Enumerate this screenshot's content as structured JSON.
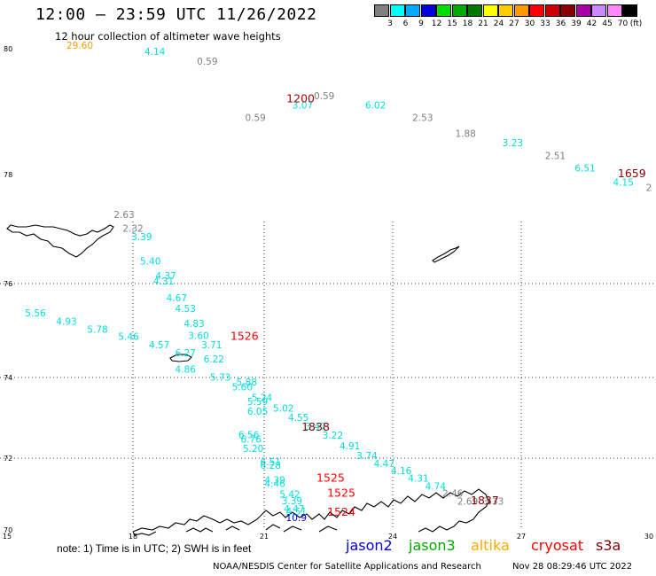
{
  "header": {
    "title": "12:00 — 23:59 UTC 11/26/2022",
    "subtitle": "12 hour collection of altimeter wave heights"
  },
  "color_scale": {
    "unit": "(ft)",
    "entries": [
      {
        "label": "3",
        "color": "#808080"
      },
      {
        "label": "6",
        "color": "#00ffff"
      },
      {
        "label": "9",
        "color": "#00aaff"
      },
      {
        "label": "12",
        "color": "#0000dd"
      },
      {
        "label": "15",
        "color": "#00dd00"
      },
      {
        "label": "18",
        "color": "#00aa00"
      },
      {
        "label": "21",
        "color": "#007700"
      },
      {
        "label": "24",
        "color": "#ffff00"
      },
      {
        "label": "27",
        "color": "#ffcc00"
      },
      {
        "label": "30",
        "color": "#ff9900"
      },
      {
        "label": "33",
        "color": "#ff0000"
      },
      {
        "label": "36",
        "color": "#cc0000"
      },
      {
        "label": "39",
        "color": "#880000"
      },
      {
        "label": "42",
        "color": "#aa00aa"
      },
      {
        "label": "45",
        "color": "#cc88ff"
      },
      {
        "label": "70",
        "color": "#ff88ff"
      },
      {
        "label": "",
        "color": "#000000"
      }
    ]
  },
  "axes": {
    "lat_labels": [
      {
        "text": "80",
        "lat": 80
      },
      {
        "text": "78",
        "lat": 78
      },
      {
        "text": "76",
        "lat": 76
      },
      {
        "text": "74",
        "lat": 74
      },
      {
        "text": "72",
        "lat": 72
      },
      {
        "text": "70",
        "lat": 70
      }
    ],
    "lon_labels": [
      {
        "text": "15",
        "lon": 15
      },
      {
        "text": "18",
        "lon": 18
      },
      {
        "text": "21",
        "lon": 21
      },
      {
        "text": "24",
        "lon": 24
      },
      {
        "text": "27",
        "lon": 27
      },
      {
        "text": "30",
        "lon": 30
      }
    ]
  },
  "observations": [
    {
      "v": "29.60",
      "lat": 80.0,
      "lon": 16.8,
      "c": "#ff9900"
    },
    {
      "v": "4.14",
      "lat": 79.9,
      "lon": 18.5,
      "c": "#00dddd"
    },
    {
      "v": "0.59",
      "lat": 79.75,
      "lon": 19.7,
      "c": "#808080"
    },
    {
      "v": "0.59",
      "lat": 79.2,
      "lon": 22.4,
      "c": "#808080"
    },
    {
      "v": "3.07",
      "lat": 79.05,
      "lon": 21.9,
      "c": "#00dddd"
    },
    {
      "v": "6.02",
      "lat": 79.05,
      "lon": 23.6,
      "c": "#00dddd"
    },
    {
      "v": "2.53",
      "lat": 78.85,
      "lon": 24.7,
      "c": "#808080"
    },
    {
      "v": "1.88",
      "lat": 78.6,
      "lon": 25.7,
      "c": "#808080"
    },
    {
      "v": "3.23",
      "lat": 78.45,
      "lon": 26.8,
      "c": "#00dddd"
    },
    {
      "v": "2.51",
      "lat": 78.25,
      "lon": 27.8,
      "c": "#808080"
    },
    {
      "v": "6.51",
      "lat": 78.05,
      "lon": 28.5,
      "c": "#00dddd"
    },
    {
      "v": "4.15",
      "lat": 77.8,
      "lon": 29.4,
      "c": "#00dddd"
    },
    {
      "v": "0.59",
      "lat": 78.85,
      "lon": 20.8,
      "c": "#808080"
    },
    {
      "v": "2",
      "lat": 77.7,
      "lon": 30.0,
      "c": "#808080"
    },
    {
      "v": "2.63",
      "lat": 77.2,
      "lon": 17.8,
      "c": "#808080"
    },
    {
      "v": "2.32",
      "lat": 76.95,
      "lon": 18.0,
      "c": "#808080"
    },
    {
      "v": "3.39",
      "lat": 76.8,
      "lon": 18.2,
      "c": "#00dddd"
    },
    {
      "v": "5.40",
      "lat": 76.35,
      "lon": 18.4,
      "c": "#00dddd"
    },
    {
      "v": "4.37",
      "lat": 76.08,
      "lon": 18.75,
      "c": "#00dddd"
    },
    {
      "v": "4.31",
      "lat": 75.98,
      "lon": 18.7,
      "c": "#00dddd"
    },
    {
      "v": "4.67",
      "lat": 75.62,
      "lon": 19.0,
      "c": "#00dddd"
    },
    {
      "v": "4.53",
      "lat": 75.4,
      "lon": 19.2,
      "c": "#00dddd"
    },
    {
      "v": "4.83",
      "lat": 75.08,
      "lon": 19.4,
      "c": "#00dddd"
    },
    {
      "v": "3.60",
      "lat": 74.82,
      "lon": 19.5,
      "c": "#00dddd"
    },
    {
      "v": "3.71",
      "lat": 74.62,
      "lon": 19.8,
      "c": "#00dddd"
    },
    {
      "v": "6.22",
      "lat": 74.32,
      "lon": 19.85,
      "c": "#00dddd"
    },
    {
      "v": "4.86",
      "lat": 74.1,
      "lon": 19.2,
      "c": "#00dddd"
    },
    {
      "v": "5.73",
      "lat": 73.92,
      "lon": 20.0,
      "c": "#00dddd"
    },
    {
      "v": "5.88",
      "lat": 73.8,
      "lon": 20.6,
      "c": "#00dddd"
    },
    {
      "v": "5.60",
      "lat": 73.68,
      "lon": 20.5,
      "c": "#00dddd"
    },
    {
      "v": "5.24",
      "lat": 73.42,
      "lon": 20.95,
      "c": "#00dddd"
    },
    {
      "v": "5.59",
      "lat": 73.32,
      "lon": 20.85,
      "c": "#00dddd"
    },
    {
      "v": "6.05",
      "lat": 73.08,
      "lon": 20.85,
      "c": "#00dddd"
    },
    {
      "v": "5.02",
      "lat": 73.15,
      "lon": 21.45,
      "c": "#00dddd"
    },
    {
      "v": "4.55",
      "lat": 72.92,
      "lon": 21.8,
      "c": "#00dddd"
    },
    {
      "v": "3.47",
      "lat": 72.7,
      "lon": 22.2,
      "c": "#00dddd"
    },
    {
      "v": "3.22",
      "lat": 72.48,
      "lon": 22.6,
      "c": "#00dddd"
    },
    {
      "v": "4.91",
      "lat": 72.22,
      "lon": 23.0,
      "c": "#00dddd"
    },
    {
      "v": "3.74",
      "lat": 71.98,
      "lon": 23.4,
      "c": "#00dddd"
    },
    {
      "v": "4.47",
      "lat": 71.75,
      "lon": 23.8,
      "c": "#00dddd"
    },
    {
      "v": "4.16",
      "lat": 71.55,
      "lon": 24.2,
      "c": "#00dddd"
    },
    {
      "v": "4.31",
      "lat": 71.34,
      "lon": 24.6,
      "c": "#00dddd"
    },
    {
      "v": "4.74",
      "lat": 71.12,
      "lon": 25.0,
      "c": "#00dddd"
    },
    {
      "v": "2.46",
      "lat": 70.92,
      "lon": 25.4,
      "c": "#808080"
    },
    {
      "v": "2.69",
      "lat": 70.7,
      "lon": 25.75,
      "c": "#808080"
    },
    {
      "v": "3.33",
      "lat": 70.7,
      "lon": 26.35,
      "c": "#808080"
    },
    {
      "v": "6.56",
      "lat": 72.5,
      "lon": 20.65,
      "c": "#00dddd"
    },
    {
      "v": "6.76",
      "lat": 72.38,
      "lon": 20.7,
      "c": "#00dddd"
    },
    {
      "v": "5.20",
      "lat": 72.15,
      "lon": 20.75,
      "c": "#00dddd"
    },
    {
      "v": "6.51",
      "lat": 71.8,
      "lon": 21.15,
      "c": "#00dddd"
    },
    {
      "v": "6.28",
      "lat": 71.7,
      "lon": 21.15,
      "c": "#00dddd"
    },
    {
      "v": "4.39",
      "lat": 71.3,
      "lon": 21.25,
      "c": "#00dddd"
    },
    {
      "v": "4.46",
      "lat": 71.2,
      "lon": 21.25,
      "c": "#00dddd"
    },
    {
      "v": "5.42",
      "lat": 70.9,
      "lon": 21.6,
      "c": "#00dddd"
    },
    {
      "v": "3.39",
      "lat": 70.72,
      "lon": 21.65,
      "c": "#00dddd"
    },
    {
      "v": "4.47",
      "lat": 70.5,
      "lon": 21.7,
      "c": "#00dddd"
    },
    {
      "v": "4.51",
      "lat": 70.42,
      "lon": 21.75,
      "c": "#00dddd"
    },
    {
      "v": "10.9",
      "lat": 70.25,
      "lon": 21.75,
      "c": "#0000dd"
    },
    {
      "v": "5.56",
      "lat": 75.3,
      "lon": 15.8,
      "c": "#00dddd"
    },
    {
      "v": "4.93",
      "lat": 75.12,
      "lon": 16.5,
      "c": "#00dddd"
    },
    {
      "v": "5.78",
      "lat": 74.95,
      "lon": 17.2,
      "c": "#00dddd"
    },
    {
      "v": "5.46",
      "lat": 74.8,
      "lon": 17.9,
      "c": "#00dddd"
    },
    {
      "v": "4.57",
      "lat": 74.62,
      "lon": 18.6,
      "c": "#00dddd"
    },
    {
      "v": "6.27",
      "lat": 74.45,
      "lon": 19.2,
      "c": "#00dddd"
    }
  ],
  "time_stamps": [
    {
      "v": "1200",
      "lat": 79.15,
      "lon": 21.85,
      "c": "#aa0000"
    },
    {
      "v": "1659",
      "lat": 77.95,
      "lon": 29.6,
      "c": "#880000"
    },
    {
      "v": "1526",
      "lat": 74.8,
      "lon": 20.55,
      "c": "#ff0000"
    },
    {
      "v": "1838",
      "lat": 72.68,
      "lon": 22.2,
      "c": "#880000"
    },
    {
      "v": "1525",
      "lat": 71.35,
      "lon": 22.55,
      "c": "#ff0000"
    },
    {
      "v": "1525",
      "lat": 70.92,
      "lon": 22.8,
      "c": "#ff0000"
    },
    {
      "v": "1837",
      "lat": 70.72,
      "lon": 26.15,
      "c": "#880000"
    },
    {
      "v": "1524",
      "lat": 70.4,
      "lon": 22.8,
      "c": "#ff0000"
    }
  ],
  "footer": {
    "note": "note:  1) Time is in UTC;  2) SWH is in feet",
    "satellites": [
      {
        "name": "jason2",
        "color": "#0000dd"
      },
      {
        "name": "jason3",
        "color": "#00aa00"
      },
      {
        "name": "altika",
        "color": "#ffaa00"
      },
      {
        "name": "cryosat",
        "color": "#ff0000"
      },
      {
        "name": "s3a",
        "color": "#880000"
      }
    ],
    "credit": "NOAA/NESDIS Center for Satellite Applications and Research",
    "created": "Nov 28 08:29:46 UTC 2022"
  }
}
